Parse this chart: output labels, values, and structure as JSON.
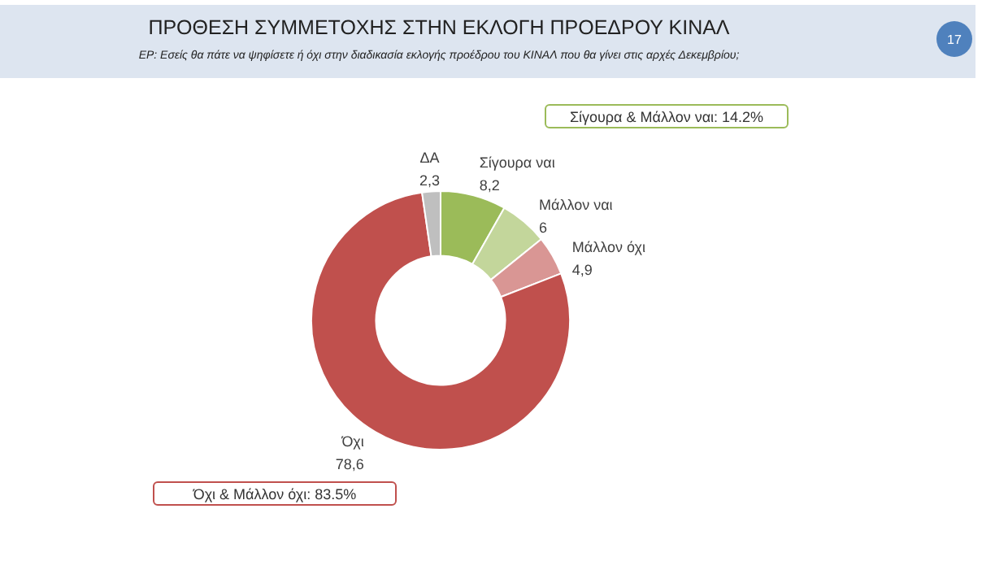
{
  "chart_data": {
    "type": "donut",
    "title": "ΠΡΟΘΕΣΗ ΣΥΜΜΕΤΟΧΗΣ ΣΤΗΝ ΕΚΛΟΓΗ ΠΡΟΕΔΡΟΥ ΚΙΝΑΛ",
    "subtitle": "ΕΡ: Εσείς θα πάτε να ψηφίσετε ή όχι στην διαδικασία εκλογής προέδρου του ΚΙΝΑΛ που θα γίνει στις αρχές Δεκεμβρίου;",
    "categories": [
      "Σίγουρα ναι",
      "Μάλλον ναι",
      "Μάλλον όχι",
      "Όχι",
      "ΔΑ"
    ],
    "values": [
      8.2,
      6,
      4.9,
      78.6,
      2.3
    ],
    "value_labels": [
      "8,2",
      "6",
      "4,9",
      "78,6",
      "2,3"
    ],
    "colors": [
      "#9bbb59",
      "#c3d69b",
      "#d99694",
      "#c0504d",
      "#bfbfbf"
    ],
    "annotations": [
      "17",
      "Σίγουρα & Μάλλον ναι: 14.2%",
      "Όχι & Μάλλον όχι: 83.5%"
    ],
    "legend": false
  }
}
